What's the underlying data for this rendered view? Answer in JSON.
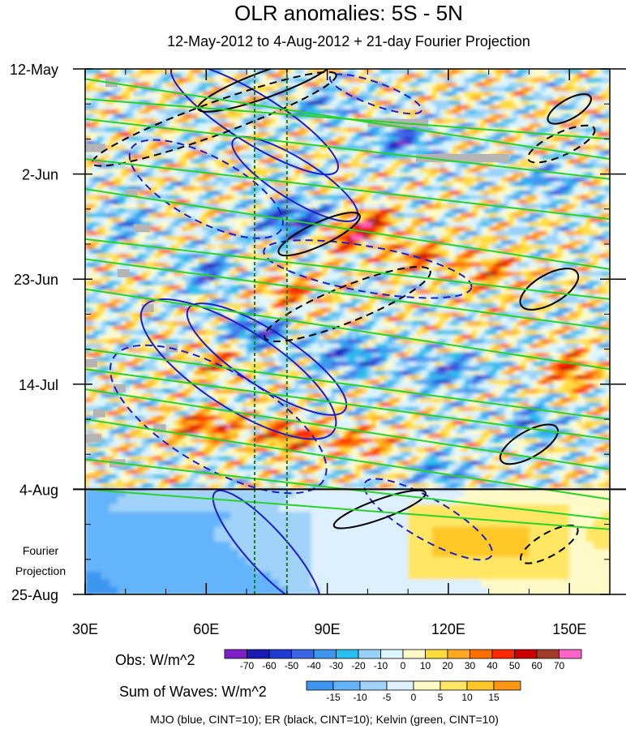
{
  "chart_data": {
    "type": "heatmap",
    "title": "OLR anomalies: 5S - 5N",
    "subtitle": "12-May-2012 to 4-Aug-2012 + 21-day Fourier Projection",
    "x_axis": {
      "ticks": [
        "30E",
        "60E",
        "90E",
        "120E",
        "150E"
      ],
      "tick_values": [
        30,
        60,
        90,
        120,
        150
      ],
      "range": [
        30,
        160
      ]
    },
    "y_axis": {
      "ticks": [
        "12-May",
        "2-Jun",
        "23-Jun",
        "14-Jul",
        "4-Aug",
        "25-Aug"
      ],
      "tick_days": [
        0,
        21,
        42,
        63,
        84,
        105
      ],
      "range_days": [
        0,
        105
      ]
    },
    "projection_label": [
      "Fourier",
      "Projection"
    ],
    "projection_start": "4-Aug",
    "reference_lines_lon": [
      72,
      80
    ],
    "obs_colorbar": {
      "label": "Obs: W/m^2",
      "levels": [
        "-70",
        "-60",
        "-50",
        "-40",
        "-30",
        "-20",
        "-10",
        "0",
        "10",
        "20",
        "30",
        "40",
        "50",
        "60",
        "70"
      ],
      "colors": [
        "#7d1ec8",
        "#1a1ab4",
        "#1e3cd2",
        "#3c64e6",
        "#3c96f0",
        "#28bef0",
        "#96d2fa",
        "#dcf5ff",
        "#fffac8",
        "#ffdc3c",
        "#ffaa1e",
        "#ff6e00",
        "#ff2800",
        "#c80000",
        "#a03c28",
        "#ff64c8"
      ]
    },
    "waves_colorbar": {
      "label": "Sum of Waves: W/m^2",
      "levels": [
        "-15",
        "-10",
        "-5",
        "0",
        "5",
        "10",
        "15"
      ],
      "colors": [
        "#3c96f0",
        "#64b4fa",
        "#a0d2fa",
        "#dcf0ff",
        "#fffac8",
        "#ffe664",
        "#ffc828",
        "#ff9614"
      ]
    },
    "contour_legend": "MJO (blue, CINT=10); ER (black, CINT=10); Kelvin (green, CINT=10)",
    "contour_colors": {
      "mjo": "#1e1ec8",
      "er": "#000000",
      "kelvin": "#28d228"
    }
  }
}
